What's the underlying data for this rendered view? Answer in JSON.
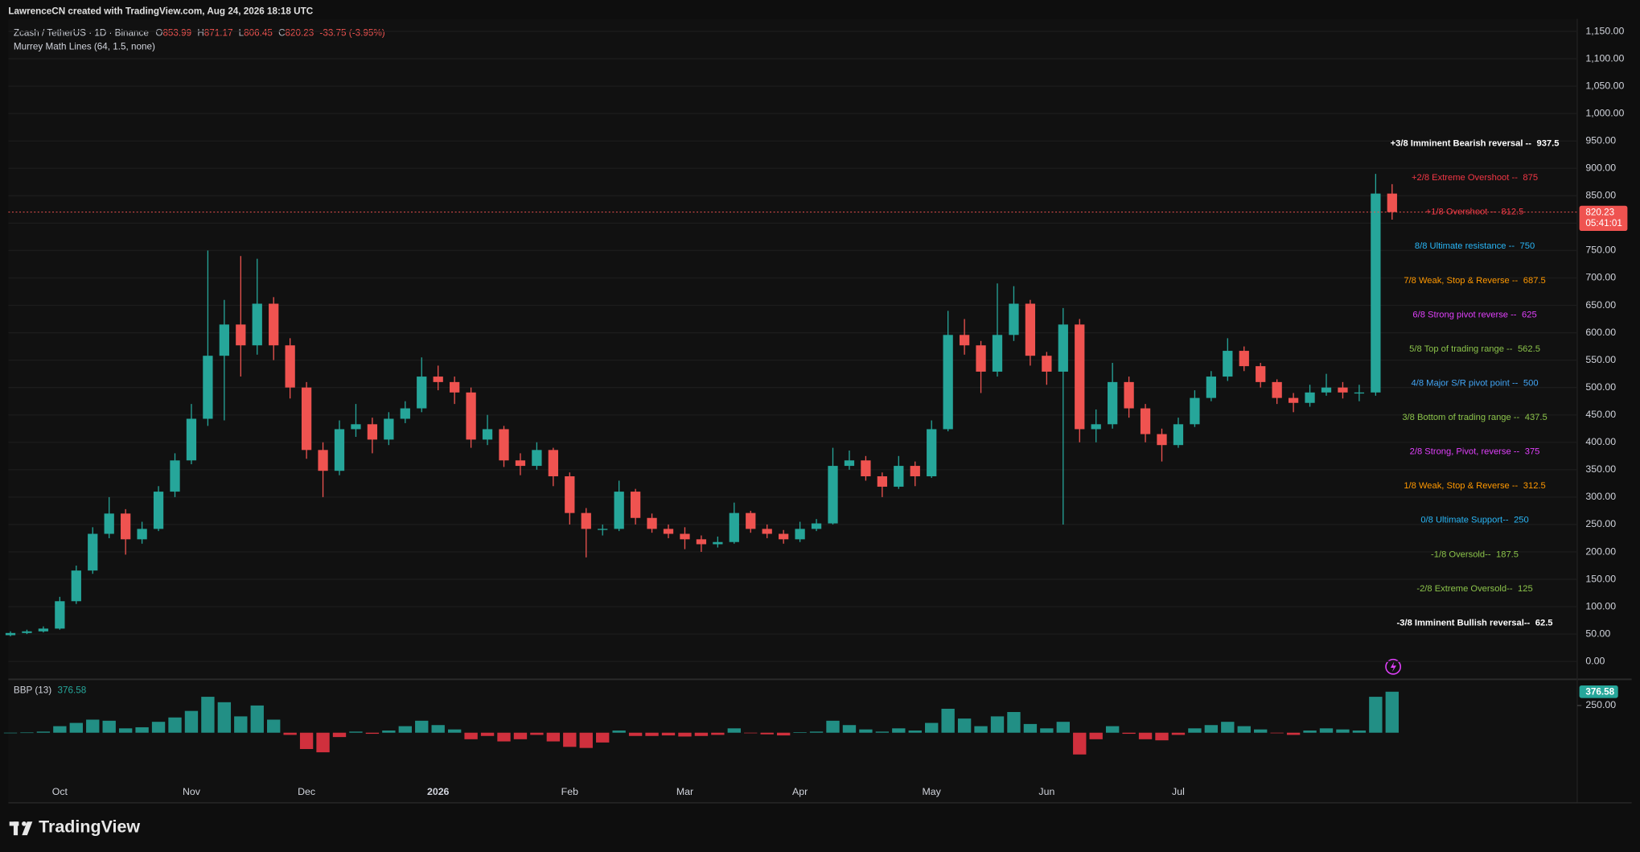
{
  "header": {
    "attribution": "LawrenceCN created with TradingView.com, Aug 24, 2026 18:18 UTC",
    "symbol": "Zcash / TetherUS · 1D · Binance",
    "ohlc": [
      {
        "label": "O",
        "value": "853.99"
      },
      {
        "label": "H",
        "value": "871.17"
      },
      {
        "label": "L",
        "value": "806.45"
      },
      {
        "label": "C",
        "value": "820.23"
      }
    ],
    "change": "-33.75 (-3.95%)",
    "indicator": "Murrey Math Lines (64, 1.5, none)"
  },
  "chart_data": [
    {
      "type": "candlestick",
      "categories": [
        null,
        null,
        null,
        "Oct",
        null,
        null,
        null,
        null,
        null,
        null,
        null,
        "Nov",
        null,
        null,
        null,
        null,
        null,
        null,
        "Dec",
        null,
        null,
        null,
        null,
        null,
        null,
        null,
        "2026",
        null,
        null,
        null,
        null,
        null,
        null,
        null,
        "Feb",
        null,
        null,
        null,
        null,
        null,
        null,
        "Mar",
        null,
        null,
        null,
        null,
        null,
        null,
        "Apr",
        null,
        null,
        null,
        null,
        null,
        null,
        null,
        "May",
        null,
        null,
        null,
        null,
        null,
        null,
        "Jun",
        null,
        null,
        null,
        null,
        null,
        null,
        null,
        "Jul",
        null,
        null,
        null,
        null,
        null,
        null,
        null,
        null,
        null,
        null,
        null,
        null,
        null
      ],
      "open": [
        48,
        52,
        55,
        60,
        110,
        166,
        233,
        270,
        223,
        242,
        310,
        367,
        443,
        558,
        615,
        577,
        653,
        577,
        500,
        386,
        348,
        424,
        433,
        405,
        443,
        462,
        520,
        510,
        491,
        405,
        424,
        367,
        357,
        386,
        338,
        271,
        242,
        242,
        310,
        262,
        242,
        233,
        223,
        214,
        218,
        271,
        242,
        233,
        223,
        242,
        252,
        357,
        367,
        338,
        319,
        357,
        338,
        424,
        596,
        577,
        529,
        596,
        653,
        558,
        529,
        615,
        424,
        433,
        510,
        462,
        415,
        395,
        433,
        481,
        520,
        567,
        539,
        510,
        481,
        472,
        491,
        500,
        491,
        491,
        853.99
      ],
      "high": [
        55,
        58,
        64,
        118,
        175,
        245,
        300,
        278,
        255,
        320,
        380,
        470,
        750,
        660,
        740,
        735,
        665,
        590,
        510,
        400,
        440,
        470,
        445,
        455,
        475,
        555,
        540,
        520,
        500,
        450,
        430,
        380,
        400,
        390,
        345,
        280,
        250,
        330,
        315,
        270,
        250,
        245,
        230,
        228,
        290,
        275,
        250,
        240,
        255,
        260,
        390,
        385,
        375,
        345,
        375,
        365,
        440,
        640,
        625,
        585,
        690,
        685,
        660,
        565,
        645,
        625,
        460,
        545,
        520,
        470,
        425,
        445,
        495,
        530,
        590,
        575,
        545,
        515,
        490,
        505,
        525,
        510,
        505,
        890,
        871.17
      ],
      "low": [
        46,
        50,
        53,
        58,
        105,
        160,
        225,
        195,
        215,
        238,
        300,
        360,
        430,
        440,
        520,
        560,
        550,
        480,
        370,
        300,
        340,
        410,
        380,
        395,
        435,
        455,
        495,
        470,
        390,
        395,
        355,
        340,
        350,
        320,
        250,
        190,
        230,
        238,
        250,
        235,
        225,
        205,
        200,
        208,
        215,
        235,
        225,
        215,
        218,
        238,
        250,
        350,
        330,
        300,
        315,
        320,
        335,
        420,
        560,
        490,
        520,
        585,
        540,
        505,
        250,
        400,
        400,
        425,
        445,
        400,
        365,
        390,
        428,
        475,
        512,
        530,
        500,
        470,
        455,
        465,
        485,
        480,
        475,
        485,
        806.45
      ],
      "close": [
        52,
        55,
        60,
        110,
        166,
        233,
        270,
        223,
        242,
        310,
        367,
        443,
        558,
        615,
        577,
        653,
        577,
        500,
        386,
        348,
        424,
        433,
        405,
        443,
        462,
        520,
        510,
        491,
        405,
        424,
        367,
        357,
        386,
        338,
        271,
        242,
        242,
        310,
        262,
        242,
        233,
        223,
        214,
        218,
        271,
        242,
        233,
        223,
        242,
        252,
        357,
        367,
        338,
        319,
        357,
        338,
        424,
        596,
        577,
        529,
        596,
        653,
        558,
        529,
        615,
        424,
        433,
        510,
        462,
        415,
        395,
        433,
        481,
        520,
        567,
        539,
        510,
        481,
        472,
        491,
        500,
        491,
        491,
        854,
        820.23
      ],
      "colors": {
        "up": "#26a69a",
        "down": "#ef5350"
      },
      "ylim": [
        -30.6,
        1172.9
      ],
      "yticks": [
        {
          "value": 0,
          "label": "0.00"
        },
        {
          "value": 50,
          "label": "50.00"
        },
        {
          "value": 100,
          "label": "100.00"
        },
        {
          "value": 150,
          "label": "150.00"
        },
        {
          "value": 200,
          "label": "200.00"
        },
        {
          "value": 250,
          "label": "250.00"
        },
        {
          "value": 300,
          "label": "300.00"
        },
        {
          "value": 350,
          "label": "350.00"
        },
        {
          "value": 400,
          "label": "400.00"
        },
        {
          "value": 450,
          "label": "450.00"
        },
        {
          "value": 500,
          "label": "500.00"
        },
        {
          "value": 550,
          "label": "550.00"
        },
        {
          "value": 600,
          "label": "600.00"
        },
        {
          "value": 650,
          "label": "650.00"
        },
        {
          "value": 700,
          "label": "700.00"
        },
        {
          "value": 750,
          "label": "750.00"
        },
        {
          "value": 800,
          "label": "800.00"
        },
        {
          "value": 850,
          "label": "850.00"
        },
        {
          "value": 900,
          "label": "900.00"
        },
        {
          "value": 950,
          "label": "950.00"
        },
        {
          "value": 1000,
          "label": "1,000.00"
        },
        {
          "value": 1050,
          "label": "1,050.00"
        },
        {
          "value": 1100,
          "label": "1,100.00"
        },
        {
          "value": 1150,
          "label": "1,150.00"
        }
      ],
      "grid": true,
      "last_price": 820.23,
      "countdown": "05:41:01",
      "murrey_levels": [
        {
          "text": "+3/8 Imminent Bearish reversal --",
          "level": 937.5,
          "color": "#ffffff",
          "weight": "bold"
        },
        {
          "text": "+2/8 Extreme Overshoot --",
          "level": 875,
          "color": "#f23645",
          "weight": "normal"
        },
        {
          "text": "+1/8 Overshoot --",
          "level": 812.5,
          "color": "#f23645",
          "weight": "normal"
        },
        {
          "text": "8/8 Ultimate resistance --",
          "level": 750,
          "color": "#29b6f6",
          "weight": "normal"
        },
        {
          "text": "7/8 Weak, Stop & Reverse --",
          "level": 687.5,
          "color": "#ff9800",
          "weight": "normal"
        },
        {
          "text": "6/8 Strong pivot reverse --",
          "level": 625,
          "color": "#e040fb",
          "weight": "normal"
        },
        {
          "text": "5/8 Top of trading range --",
          "level": 562.5,
          "color": "#8bc34a",
          "weight": "normal"
        },
        {
          "text": "4/8 Major S/R pivot point --",
          "level": 500,
          "color": "#42a5f5",
          "weight": "normal"
        },
        {
          "text": "3/8 Bottom of trading range --",
          "level": 437.5,
          "color": "#8bc34a",
          "weight": "normal"
        },
        {
          "text": "2/8 Strong, Pivot, reverse --",
          "level": 375,
          "color": "#e040fb",
          "weight": "normal"
        },
        {
          "text": "1/8 Weak, Stop & Reverse --",
          "level": 312.5,
          "color": "#ff9800",
          "weight": "normal"
        },
        {
          "text": "0/8 Ultimate Support--",
          "level": 250,
          "color": "#29b6f6",
          "weight": "normal"
        },
        {
          "text": "-1/8 Oversold--",
          "level": 187.5,
          "color": "#8bc34a",
          "weight": "normal"
        },
        {
          "text": "-2/8 Extreme Oversold--",
          "level": 125,
          "color": "#8bc34a",
          "weight": "normal"
        },
        {
          "text": "-3/8 Imminent Bullish reversal--",
          "level": 62.5,
          "color": "#ffffff",
          "weight": "bold"
        }
      ]
    },
    {
      "type": "bar",
      "title": "BBP (13)",
      "last_value": 376.58,
      "values": [
        0,
        2,
        10,
        60,
        90,
        120,
        110,
        40,
        50,
        100,
        140,
        200,
        330,
        280,
        150,
        250,
        120,
        -20,
        -150,
        -180,
        -40,
        10,
        -10,
        20,
        60,
        110,
        70,
        30,
        -60,
        -30,
        -80,
        -60,
        -20,
        -80,
        -130,
        -140,
        -90,
        20,
        -30,
        -30,
        -25,
        -35,
        -30,
        -20,
        40,
        -5,
        -15,
        -25,
        5,
        10,
        110,
        70,
        30,
        10,
        40,
        20,
        90,
        220,
        130,
        60,
        150,
        190,
        80,
        40,
        100,
        -200,
        -60,
        60,
        -10,
        -60,
        -70,
        -20,
        40,
        70,
        100,
        60,
        30,
        -5,
        -20,
        20,
        40,
        30,
        20,
        330,
        376.58
      ],
      "colors": {
        "positive": "#26a69a",
        "negative": "#f23645"
      },
      "ylim": [
        -644,
        481
      ],
      "yticks": [
        {
          "value": 250,
          "label": "250.00"
        }
      ]
    }
  ],
  "footer": {
    "brand": "TradingView"
  }
}
